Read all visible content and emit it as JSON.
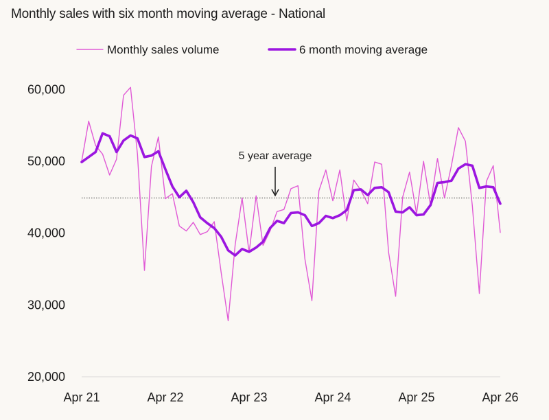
{
  "chart_data": {
    "type": "line",
    "title": "Monthly sales with six month moving average - National",
    "x": [
      "Apr 21",
      "May 21",
      "Jun 21",
      "Jul 21",
      "Aug 21",
      "Sep 21",
      "Oct 21",
      "Nov 21",
      "Dec 21",
      "Jan 22",
      "Feb 22",
      "Mar 22",
      "Apr 22",
      "May 22",
      "Jun 22",
      "Jul 22",
      "Aug 22",
      "Sep 22",
      "Oct 22",
      "Nov 22",
      "Dec 22",
      "Jan 23",
      "Feb 23",
      "Mar 23",
      "Apr 23",
      "May 23",
      "Jun 23",
      "Jul 23",
      "Aug 23",
      "Sep 23",
      "Oct 23",
      "Nov 23",
      "Dec 23",
      "Jan 24",
      "Feb 24",
      "Mar 24",
      "Apr 24",
      "May 24",
      "Jun 24",
      "Jul 24",
      "Aug 24",
      "Sep 24",
      "Oct 24",
      "Nov 24",
      "Dec 24",
      "Jan 25",
      "Feb 25",
      "Mar 25",
      "Apr 25",
      "May 25",
      "Jun 25",
      "Jul 25",
      "Aug 25",
      "Sep 25",
      "Oct 25",
      "Nov 25",
      "Dec 25",
      "Jan 26",
      "Feb 26",
      "Mar 26",
      "Apr 26"
    ],
    "x_ticks": [
      "Apr 21",
      "Apr 22",
      "Apr 23",
      "Apr 24",
      "Apr 25",
      "Apr 26"
    ],
    "y_ticks": [
      "20,000",
      "30,000",
      "40,000",
      "50,000",
      "60,000"
    ],
    "ylim": [
      20000,
      61000
    ],
    "series": [
      {
        "name": "Monthly sales volume",
        "color": "#e05ad6",
        "values": [
          50000,
          55600,
          52200,
          51000,
          48100,
          50300,
          59200,
          60300,
          51000,
          34800,
          49300,
          53400,
          44800,
          45500,
          41000,
          40300,
          41500,
          39800,
          40200,
          41600,
          34500,
          27800,
          38400,
          44900,
          37300,
          45200,
          38300,
          40300,
          43000,
          43300,
          46200,
          46600,
          36400,
          30600,
          45900,
          48800,
          44500,
          48800,
          41700,
          47400,
          46000,
          44100,
          49900,
          49600,
          37300,
          31200,
          45000,
          48500,
          42700,
          50000,
          43900,
          50400,
          44900,
          49400,
          54700,
          52800,
          43800,
          31600,
          47200,
          49400,
          40100
        ]
      },
      {
        "name": "6 month moving average",
        "color": "#9b16e0",
        "values": [
          49900,
          50600,
          51300,
          53900,
          53500,
          51300,
          52900,
          53600,
          53200,
          50600,
          50800,
          51400,
          48900,
          46500,
          45000,
          45900,
          44300,
          42200,
          41400,
          40700,
          39500,
          37600,
          36900,
          37800,
          37400,
          38000,
          38800,
          40700,
          41700,
          41400,
          42800,
          42900,
          42500,
          41000,
          41400,
          42400,
          42100,
          42500,
          43200,
          46000,
          46100,
          45300,
          46300,
          46400,
          45700,
          43000,
          42900,
          43600,
          42500,
          42600,
          43900,
          47000,
          47100,
          47300,
          49000,
          49600,
          49400,
          46300,
          46500,
          46400,
          44100
        ]
      }
    ],
    "reference_line": {
      "value": 44900,
      "label": "5 year average",
      "style": "dotted"
    },
    "legend": {
      "placement": "top",
      "items": [
        "Monthly sales volume",
        "6 month moving average"
      ]
    },
    "grid": false
  }
}
